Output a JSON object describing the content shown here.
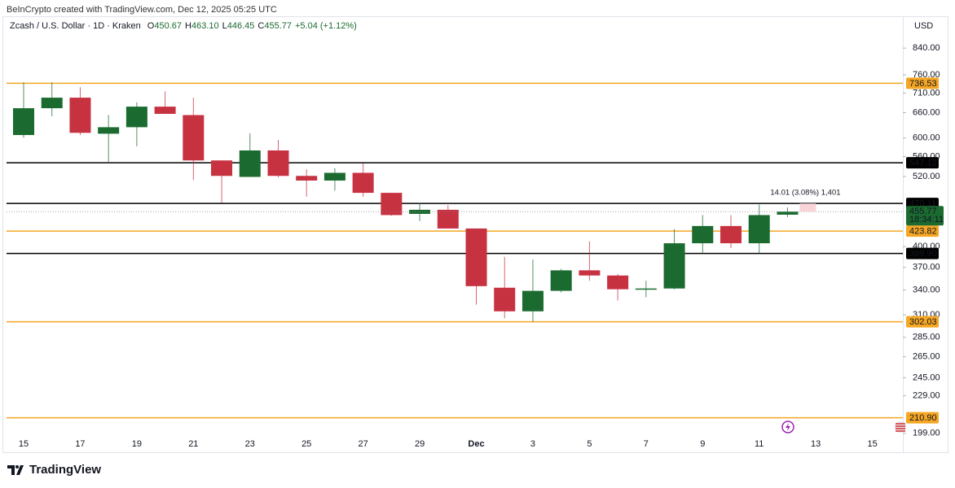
{
  "header": {
    "credit": "BeInCrypto created with TradingView.com, Dec 12, 2025 05:25 UTC"
  },
  "footer": {
    "logo": "TradingView"
  },
  "chart_data": {
    "type": "candlestick",
    "title": "Zcash / U.S. Dollar · 1D · Kraken",
    "ohlc_legend": [
      {
        "key": "O",
        "value": "450.67"
      },
      {
        "key": "H",
        "value": "463.10"
      },
      {
        "key": "L",
        "value": "446.45"
      },
      {
        "key": "C",
        "value": "455.77"
      }
    ],
    "change": "+5.04 (+1.12%)",
    "currency": "USD",
    "categories": [
      "15",
      null,
      "17",
      null,
      "19",
      null,
      "21",
      null,
      "23",
      null,
      "25",
      null,
      "27",
      null,
      "29",
      null,
      "Dec",
      null,
      "3",
      null,
      "5",
      null,
      "7",
      null,
      "9",
      null,
      "11",
      null,
      "13",
      null,
      "15"
    ],
    "open": [
      607,
      671,
      698,
      610,
      625,
      675,
      654,
      552,
      519,
      573,
      521,
      512,
      527,
      489,
      452,
      459,
      428,
      343,
      314,
      339,
      366,
      359,
      341,
      342,
      405,
      432,
      405,
      450.67,
      null,
      null,
      null
    ],
    "high": [
      739,
      739,
      726,
      654,
      686,
      715,
      698,
      552,
      611,
      596,
      534,
      536,
      546,
      489,
      471,
      467,
      428,
      385,
      381,
      368,
      408,
      361,
      352,
      427,
      450,
      450,
      468,
      463.1,
      null,
      null,
      null
    ],
    "low": [
      601,
      651,
      607,
      549,
      582,
      657,
      513,
      471,
      519,
      518,
      482,
      493,
      482,
      449,
      440,
      428,
      322,
      306,
      302,
      337,
      352,
      327,
      331,
      341,
      390,
      398,
      390,
      446.45,
      null,
      null,
      null
    ],
    "close": [
      671,
      698,
      612,
      625,
      675,
      657,
      552,
      521,
      573,
      521,
      512,
      527,
      489,
      450,
      459,
      428,
      345,
      314,
      339,
      366,
      359,
      341,
      342,
      405,
      432,
      405,
      450,
      455.77,
      null,
      null,
      null
    ],
    "up_color": "#1b6b30",
    "down_color": "#c73241",
    "ylim": [
      190,
      877
    ],
    "log_scale": true,
    "yticks": [
      {
        "value": 840,
        "label": "840.00"
      },
      {
        "value": 760,
        "label": "760.00"
      },
      {
        "value": 710,
        "label": "710.00"
      },
      {
        "value": 660,
        "label": "660.00"
      },
      {
        "value": 600,
        "label": "600.00"
      },
      {
        "value": 560,
        "label": "560.00"
      },
      {
        "value": 520,
        "label": "520.00"
      },
      {
        "value": 400,
        "label": "400.00"
      },
      {
        "value": 370,
        "label": "370.00"
      },
      {
        "value": 340,
        "label": "340.00"
      },
      {
        "value": 310,
        "label": "310.00"
      },
      {
        "value": 285,
        "label": "285.00"
      },
      {
        "value": 265,
        "label": "265.00"
      },
      {
        "value": 245,
        "label": "245.00"
      },
      {
        "value": 229,
        "label": "229.00"
      },
      {
        "value": 199,
        "label": "199.00"
      }
    ],
    "levels": [
      {
        "value": 736.53,
        "label": "736.53",
        "color": "#f5a623"
      },
      {
        "value": 547.12,
        "label": "547.12",
        "color": "#000000"
      },
      {
        "value": 470.11,
        "label": "470.11",
        "color": "#000000"
      },
      {
        "value": 423.82,
        "label": "423.82",
        "color": "#f5a623"
      },
      {
        "value": 389.9,
        "label": "389.90",
        "color": "#000000"
      },
      {
        "value": 302.03,
        "label": "302.03",
        "color": "#f5a623"
      },
      {
        "value": 210.9,
        "label": "210.90",
        "color": "#f5a623"
      }
    ],
    "last_price": {
      "value": 455.77,
      "countdown": "18:34:11"
    },
    "annotation": "14.01 (3.08%) 1,401"
  }
}
